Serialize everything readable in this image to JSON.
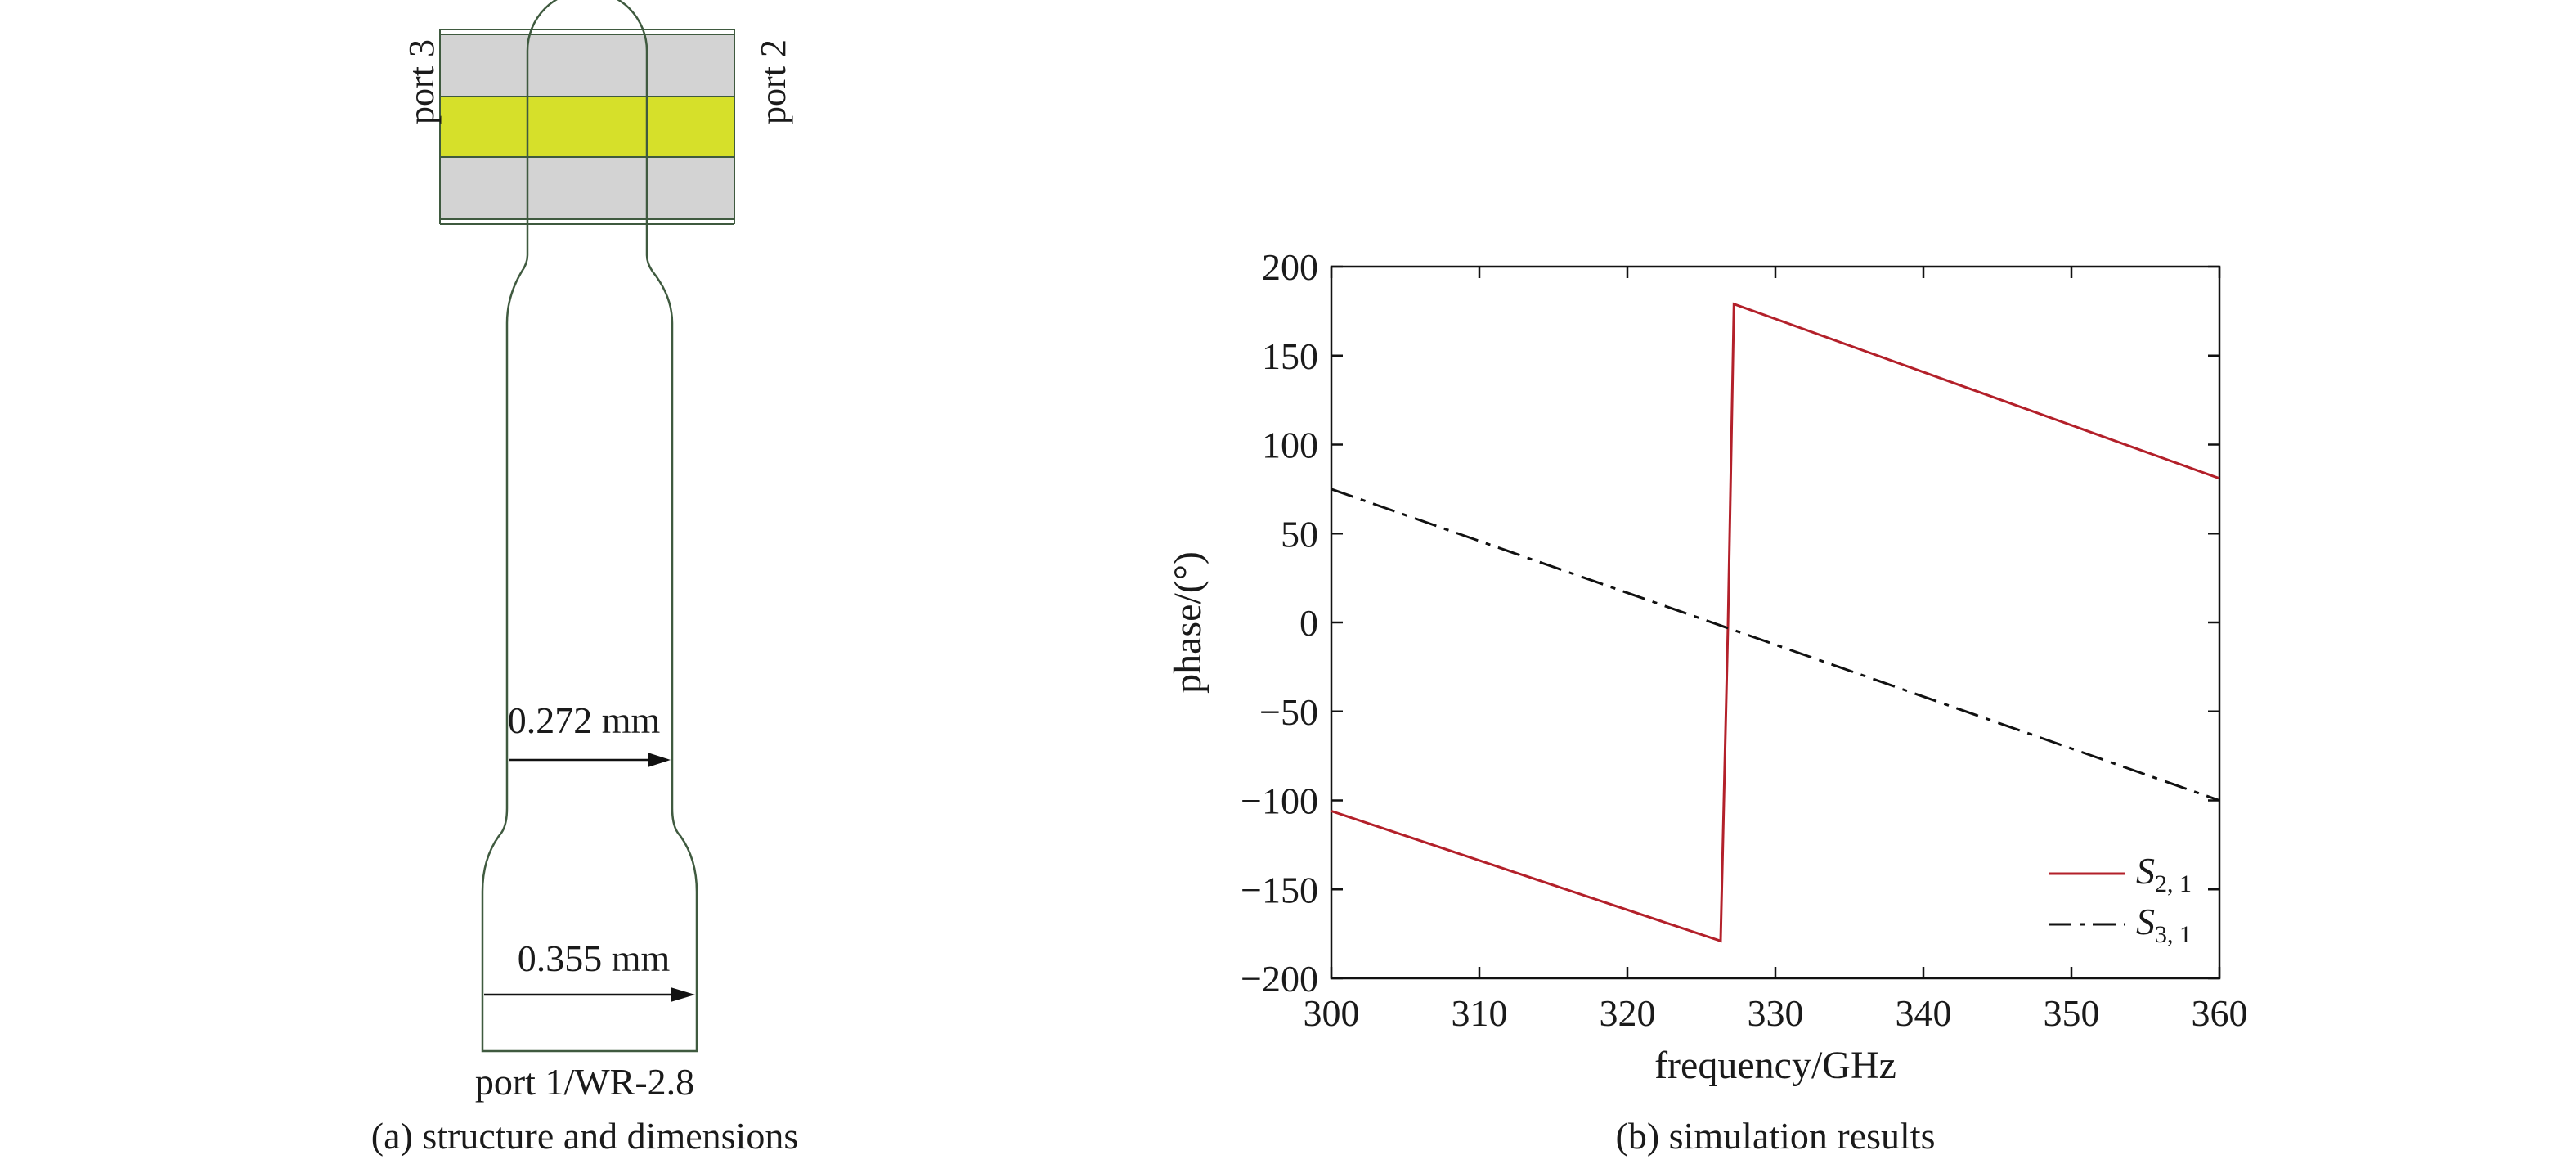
{
  "left_panel": {
    "port_top_left": "port 3",
    "port_top_right": "port 2",
    "dimension_inner": "0.272 mm",
    "dimension_outer": "0.355 mm",
    "port_bottom": "port 1/WR-2.8",
    "caption": "(a) structure and dimensions",
    "colors": {
      "gray_region": "#d3d3d3",
      "yellow_region": "#d6e02a",
      "outline": "#3f5a3f"
    }
  },
  "right_panel": {
    "caption": "(b) simulation results"
  },
  "chart_data": {
    "type": "line",
    "xlabel": "frequency/GHz",
    "ylabel": "phase/(°)",
    "xlim": [
      300,
      360
    ],
    "ylim": [
      -200,
      200
    ],
    "xticks": [
      "300",
      "310",
      "320",
      "330",
      "340",
      "350",
      "360"
    ],
    "yticks": [
      "200",
      "150",
      "100",
      "50",
      "0",
      "−50",
      "−100",
      "−150",
      "−200"
    ],
    "grid": false,
    "legend_placement": "bottom-right",
    "series": [
      {
        "name_main": "S",
        "name_sub": "2, 1",
        "color": "#b3202a",
        "style": "solid",
        "x": [
          300,
          326.3,
          326.8,
          327.2,
          360
        ],
        "y": [
          -106,
          -179,
          0,
          179,
          81
        ]
      },
      {
        "name_main": "S",
        "name_sub": "3, 1",
        "color": "#111111",
        "style": "dash-dot",
        "x": [
          300,
          360
        ],
        "y": [
          75,
          -100
        ]
      }
    ]
  }
}
